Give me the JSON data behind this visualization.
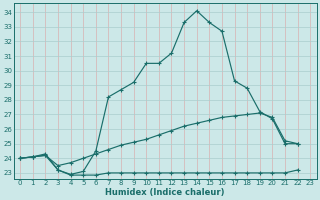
{
  "xlabel": "Humidex (Indice chaleur)",
  "background_color": "#cce8e8",
  "grid_color": "#aacece",
  "line_color": "#1a6e6a",
  "xlim": [
    -0.5,
    23.5
  ],
  "ylim": [
    22.6,
    34.6
  ],
  "yticks": [
    23,
    24,
    25,
    26,
    27,
    28,
    29,
    30,
    31,
    32,
    33,
    34
  ],
  "xticks": [
    0,
    1,
    2,
    3,
    4,
    5,
    6,
    7,
    8,
    9,
    10,
    11,
    12,
    13,
    14,
    15,
    16,
    17,
    18,
    19,
    20,
    21,
    22,
    23
  ],
  "curve_top_x": [
    0,
    1,
    2,
    3,
    4,
    5,
    6,
    7,
    8,
    9,
    10,
    11,
    12,
    13,
    14,
    15,
    16,
    17,
    18,
    19,
    20,
    21,
    22
  ],
  "curve_top_y": [
    24.0,
    24.1,
    24.3,
    23.2,
    22.9,
    23.1,
    24.5,
    28.2,
    28.7,
    29.2,
    30.5,
    30.5,
    31.2,
    33.3,
    34.1,
    33.3,
    32.7,
    29.3,
    28.8,
    27.2,
    26.7,
    25.0,
    25.0
  ],
  "curve_mid_x": [
    0,
    1,
    2,
    3,
    4,
    5,
    6,
    7,
    8,
    9,
    10,
    11,
    12,
    13,
    14,
    15,
    16,
    17,
    18,
    19,
    20,
    21,
    22
  ],
  "curve_mid_y": [
    24.0,
    24.1,
    24.2,
    23.5,
    23.7,
    24.0,
    24.3,
    24.6,
    24.9,
    25.1,
    25.3,
    25.6,
    25.9,
    26.2,
    26.4,
    26.6,
    26.8,
    26.9,
    27.0,
    27.1,
    26.8,
    25.2,
    25.0
  ],
  "curve_bot_x": [
    0,
    1,
    2,
    3,
    4,
    5,
    6,
    7,
    8,
    9,
    10,
    11,
    12,
    13,
    14,
    15,
    16,
    17,
    18,
    19,
    20,
    21,
    22
  ],
  "curve_bot_y": [
    24.0,
    24.1,
    24.2,
    23.2,
    22.85,
    22.85,
    22.85,
    23.0,
    23.0,
    23.0,
    23.0,
    23.0,
    23.0,
    23.0,
    23.0,
    23.0,
    23.0,
    23.0,
    23.0,
    23.0,
    23.0,
    23.0,
    23.2
  ]
}
